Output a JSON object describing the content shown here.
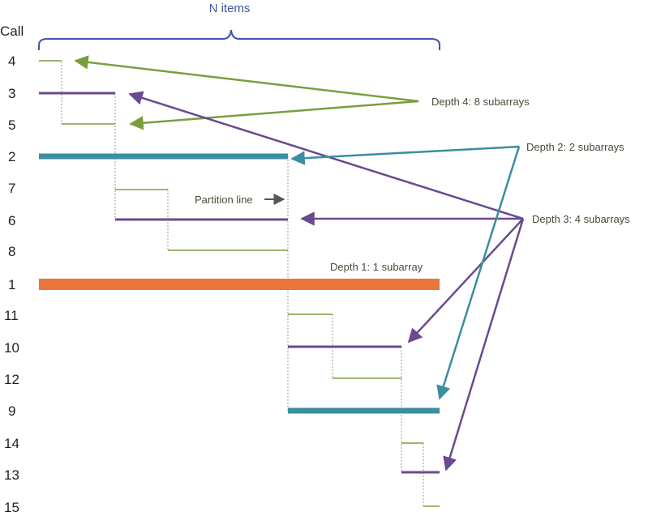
{
  "header": {
    "title": "N items",
    "call_label": "Call"
  },
  "colors": {
    "depth1": "#e8763a",
    "depth2": "#3a8ea0",
    "depth3": "#6a4a8e",
    "depth4": "#7a9e3e",
    "brace": "#3d55a6",
    "partition": "#555555",
    "guide": "#999999"
  },
  "calls": [
    "4",
    "3",
    "5",
    "2",
    "7",
    "6",
    "8",
    "1",
    "11",
    "10",
    "12",
    "9",
    "14",
    "13",
    "15"
  ],
  "labels": {
    "depth4": "Depth 4:   8 subarrays",
    "depth2": "Depth 2:   2 subarrays",
    "depth3": "Depth 3:   4 subarrays",
    "depth1": "Depth 1:   1 subarray",
    "partition": "Partition line"
  }
}
